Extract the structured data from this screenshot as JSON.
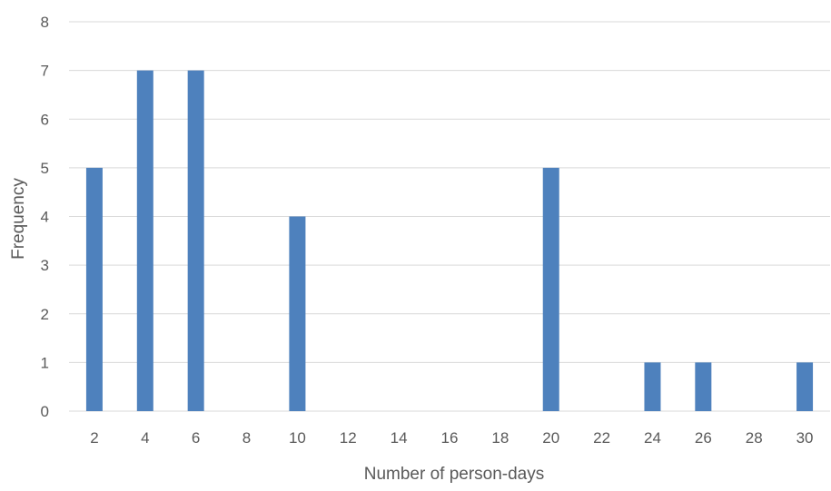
{
  "chart_data": {
    "type": "bar",
    "categories": [
      "2",
      "4",
      "6",
      "8",
      "10",
      "12",
      "14",
      "16",
      "18",
      "20",
      "22",
      "24",
      "26",
      "28",
      "30"
    ],
    "values": [
      5,
      7,
      7,
      0,
      4,
      0,
      0,
      0,
      0,
      5,
      0,
      1,
      1,
      0,
      1
    ],
    "xlabel": "Number of person-days",
    "ylabel": "Frequency",
    "ylim": [
      0,
      8
    ],
    "yticks": [
      0,
      1,
      2,
      3,
      4,
      5,
      6,
      7,
      8
    ],
    "grid": true,
    "legend": "none",
    "bar_color": "#4e81bd",
    "grid_color": "#d9d9d9"
  }
}
